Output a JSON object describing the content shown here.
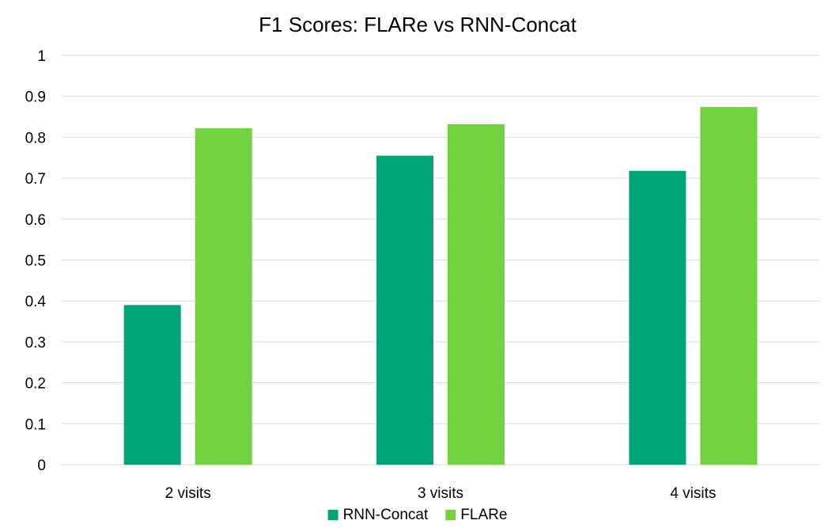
{
  "chart_data": {
    "type": "bar",
    "title": "F1 Scores: FLARe vs RNN-Concat",
    "xlabel": "",
    "ylabel": "",
    "categories": [
      "2 visits",
      "3 visits",
      "4 visits"
    ],
    "series": [
      {
        "name": "RNN-Concat",
        "color": "#00a578",
        "values": [
          0.39,
          0.755,
          0.718
        ]
      },
      {
        "name": "FLARe",
        "color": "#72d23f",
        "values": [
          0.822,
          0.832,
          0.874
        ]
      }
    ],
    "ylim": [
      0,
      1
    ],
    "yticks": [
      0,
      0.1,
      0.2,
      0.3,
      0.4,
      0.5,
      0.6,
      0.7,
      0.8,
      0.9,
      1
    ],
    "ytick_labels": [
      "0",
      "0.1",
      "0.2",
      "0.3",
      "0.4",
      "0.5",
      "0.6",
      "0.7",
      "0.8",
      "0.9",
      "1"
    ],
    "grid": true,
    "legend_position": "bottom"
  }
}
